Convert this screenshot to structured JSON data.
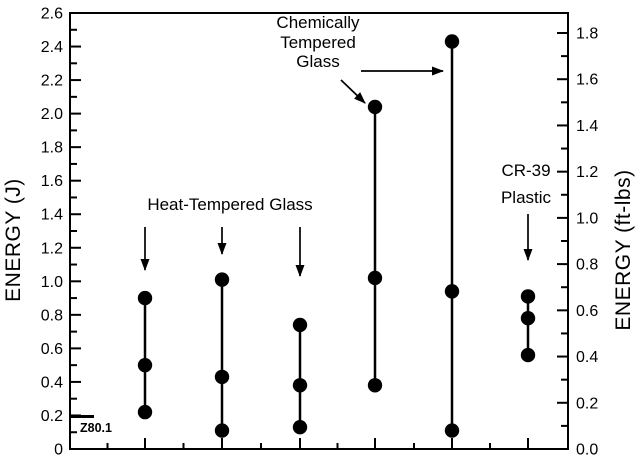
{
  "chart_data": {
    "type": "scatter",
    "description": "Impact energy ranges (min, mid, max points connected by vertical lines) for six lens samples",
    "left_axis": {
      "title": "ENERGY (J)",
      "min": 0,
      "max": 2.6,
      "major_step": 0.2,
      "minor_step": 0.1,
      "tick_labels": [
        "0",
        "0.2",
        "0.4",
        "0.6",
        "0.8",
        "1.0",
        "1.2",
        "1.4",
        "1.6",
        "1.8",
        "2.0",
        "2.2",
        "2.4",
        "2.6"
      ]
    },
    "right_axis": {
      "title": "ENERGY (ft-lbs)",
      "min": 0,
      "max": 1.8,
      "major_step": 0.2,
      "minor_step": 0.1,
      "tick_labels": [
        "0.0",
        "0.2",
        "0.4",
        "0.6",
        "0.8",
        "1.0",
        "1.2",
        "1.4",
        "1.6",
        "1.8"
      ]
    },
    "x_axis": {
      "tick_labels": [],
      "grid": false
    },
    "series": [
      {
        "group": "Heat-Tempered Glass",
        "points_j": [
          0.22,
          0.5,
          0.9
        ]
      },
      {
        "group": "Heat-Tempered Glass",
        "points_j": [
          0.11,
          0.43,
          1.01
        ]
      },
      {
        "group": "Heat-Tempered Glass",
        "points_j": [
          0.13,
          0.38,
          0.74
        ]
      },
      {
        "group": "Chemically Tempered Glass",
        "points_j": [
          0.38,
          1.02,
          2.04
        ]
      },
      {
        "group": "Chemically Tempered Glass",
        "points_j": [
          0.11,
          0.94,
          2.43
        ]
      },
      {
        "group": "CR-39 Plastic",
        "points_j": [
          0.56,
          0.78,
          0.91
        ]
      }
    ],
    "annotations": {
      "heat": {
        "label": "Heat-Tempered Glass",
        "targets_series": [
          0,
          1,
          2
        ]
      },
      "chem": {
        "label": "Chemically\nTempered\nGlass",
        "targets_series": [
          3,
          4
        ]
      },
      "cr39": {
        "label": "CR-39\nPlastic",
        "targets_series": [
          5
        ]
      },
      "z801": {
        "label": "Z80.1",
        "value_j": 0.2
      }
    },
    "legend": null,
    "colors": {
      "ink": "#000000",
      "background": "#ffffff"
    }
  }
}
